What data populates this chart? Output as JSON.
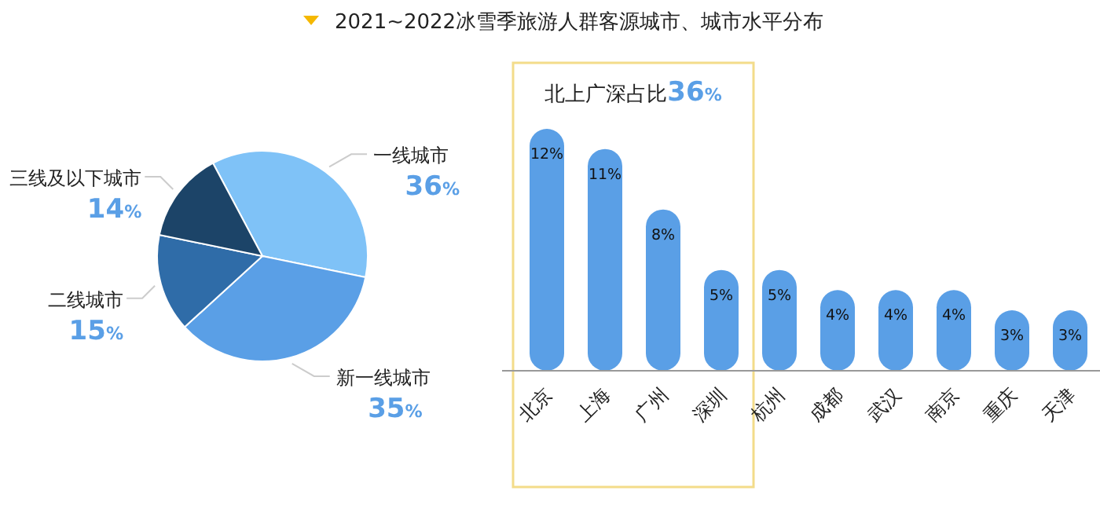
{
  "chart_data": [
    {
      "type": "pie",
      "categories": [
        "一线城市",
        "新一线城市",
        "二线城市",
        "三线及以下城市"
      ],
      "values": [
        36,
        35,
        15,
        14
      ],
      "value_labels": [
        "36%",
        "35%",
        "15%",
        "14%"
      ],
      "colors": [
        "#7fc2f7",
        "#5a9fe6",
        "#2f6ca8",
        "#1c4468"
      ]
    },
    {
      "type": "bar",
      "title": "2021~2022冰雪季旅游人群客源城市、城市水平分布",
      "categories": [
        "北京",
        "上海",
        "广州",
        "深圳",
        "杭州",
        "成都",
        "武汉",
        "南京",
        "重庆",
        "天津"
      ],
      "values": [
        12,
        11,
        8,
        5,
        5,
        4,
        4,
        4,
        3,
        3
      ],
      "value_labels": [
        "12%",
        "11%",
        "8%",
        "5%",
        "5%",
        "4%",
        "4%",
        "4%",
        "3%",
        "3%"
      ],
      "color": "#5a9fe6",
      "annotations": [
        "北上广深占比36%"
      ]
    }
  ]
}
